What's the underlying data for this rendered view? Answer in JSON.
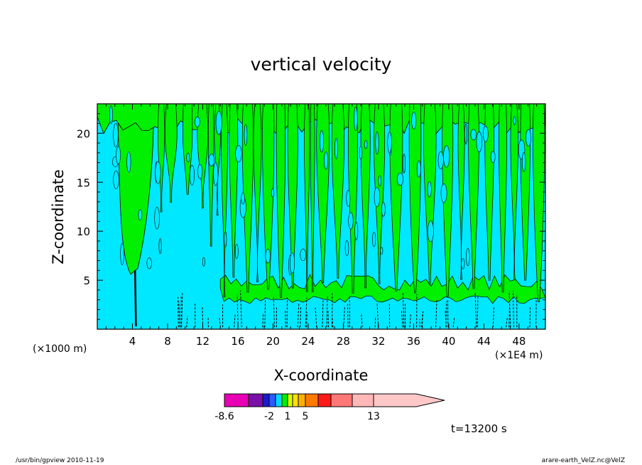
{
  "chart_data": {
    "type": "heatmap",
    "title": "vertical velocity",
    "xlabel": "X-coordinate",
    "ylabel": "Z-coordinate",
    "x_unit_left": "(×1000 m)",
    "x_unit_right": "(×1E4 m)",
    "xlim": [
      0,
      51
    ],
    "ylim": [
      0,
      23
    ],
    "xticks": [
      4,
      8,
      12,
      16,
      20,
      24,
      28,
      32,
      36,
      40,
      44,
      48
    ],
    "yticks": [
      5,
      10,
      15,
      20
    ],
    "colorbar": {
      "levels": [
        -8.6,
        -6,
        -4,
        -2,
        -1,
        0,
        1,
        2,
        3,
        5,
        7,
        9,
        11,
        13,
        20
      ],
      "colors": [
        "#e800b4",
        "#7a10a8",
        "#1a1ad0",
        "#2a5cff",
        "#00d8ff",
        "#00f000",
        "#d8ff00",
        "#ffe000",
        "#ffb000",
        "#ff7a00",
        "#ff1a1a",
        "#ff7878",
        "#ffb8b8",
        "#ffc8c8"
      ],
      "labels": [
        {
          "value": -8.6,
          "text": "-8.6"
        },
        {
          "value": -2,
          "text": "-2"
        },
        {
          "value": 1,
          "text": "1"
        },
        {
          "value": 5,
          "text": "5"
        },
        {
          "value": 13,
          "text": "13"
        }
      ]
    },
    "field_colors": {
      "negative": "#00e8ff",
      "positive": "#00f000",
      "contour": "#000000"
    }
  },
  "annotations": {
    "time": "t=13200 s",
    "footer_left": "/usr/bin/gpview   2010-11-19",
    "footer_right": "arare-earth_VelZ.nc@VelZ"
  }
}
